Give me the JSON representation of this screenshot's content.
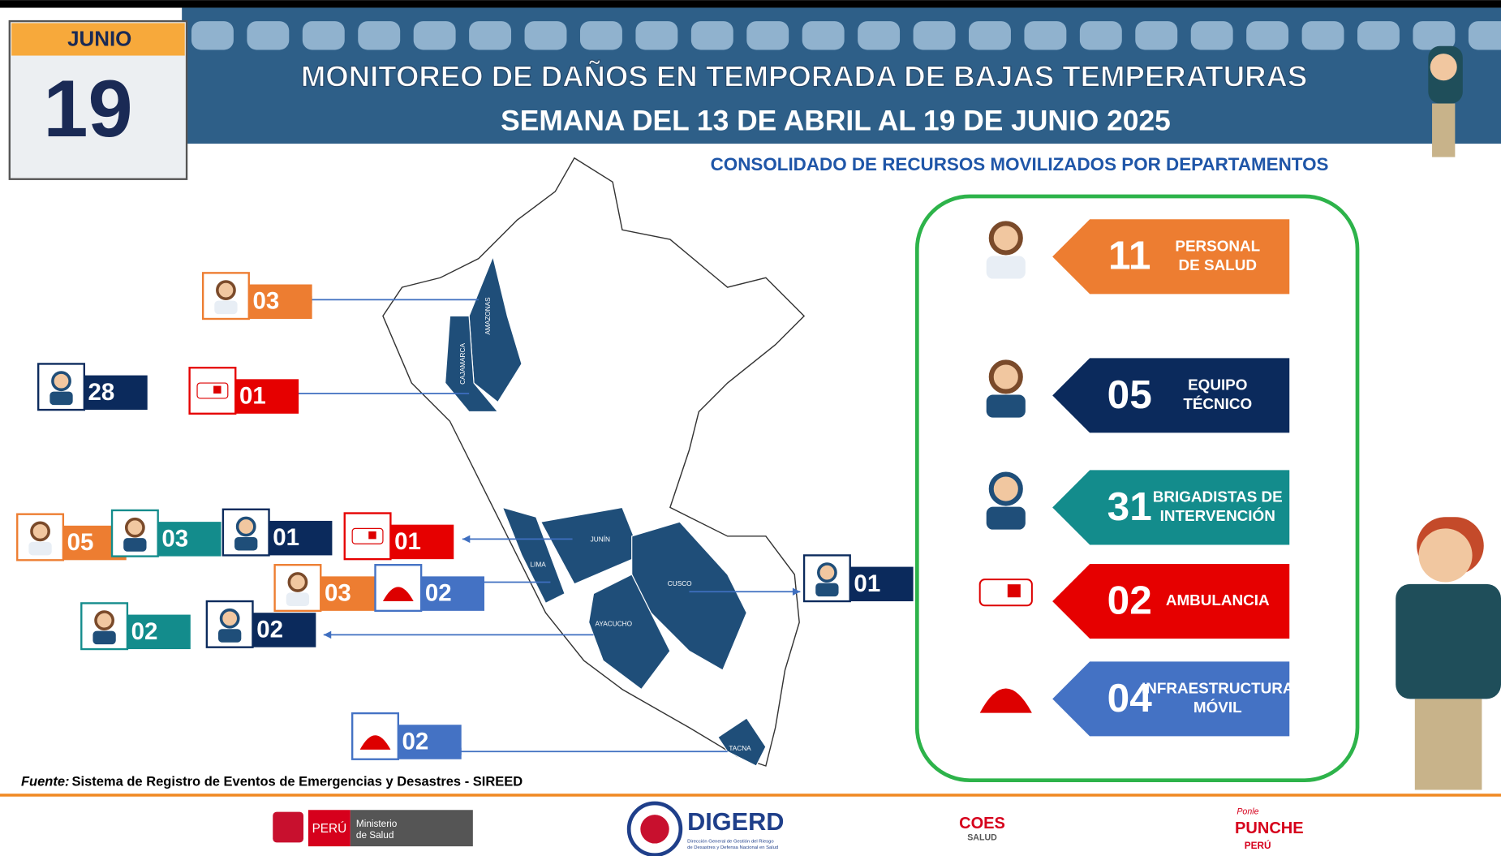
{
  "date": {
    "month": "JUNIO",
    "day": "19"
  },
  "header": {
    "title": "MONITOREO DE DAÑOS EN TEMPORADA DE BAJAS TEMPERATURAS",
    "subtitle": "SEMANA DEL 13 DE ABRIL AL 19 DE JUNIO 2025",
    "section": "CONSOLIDADO DE RECURSOS MOVILIZADOS POR DEPARTAMENTOS"
  },
  "summary": [
    {
      "value": "11",
      "label": [
        "PERSONAL",
        "DE SALUD"
      ]
    },
    {
      "value": "05",
      "label": [
        "EQUIPO",
        "TÉCNICO"
      ]
    },
    {
      "value": "31",
      "label": [
        "BRIGADISTAS DE",
        "INTERVENCIÓN"
      ]
    },
    {
      "value": "02",
      "label": [
        "AMBULANCIA"
      ]
    },
    {
      "value": "04",
      "label": [
        "INFRAESTRUCTURA",
        "MÓVIL"
      ]
    }
  ],
  "regions": [
    "AMAZONAS",
    "CAJAMARCA",
    "JUNÍN",
    "LIMA",
    "CUSCO",
    "AYACUCHO",
    "TACNA"
  ],
  "callouts": [
    "03",
    "28",
    "01",
    "05",
    "03",
    "01",
    "01",
    "03",
    "02",
    "02",
    "02",
    "01",
    "02"
  ],
  "source": {
    "label": "Fuente:",
    "text": "Sistema de Registro de Eventos de Emergencias y Desastres - SIREED"
  },
  "footer": {
    "peru": "PERÚ",
    "ministry": [
      "Ministerio",
      "de Salud"
    ],
    "digerd": "DIGERD",
    "digerd_sub": [
      "Dirección General de Gestión del Riesgo",
      "de Desastres y Defensa Nacional en Salud"
    ],
    "coes": "COES",
    "coes_sub": "SALUD",
    "punche": [
      "Ponle",
      "PUNCHE",
      "PERÚ"
    ]
  }
}
